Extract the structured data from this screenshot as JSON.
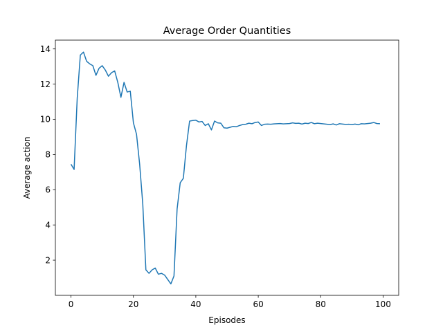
{
  "chart_data": {
    "type": "line",
    "title": "Average Order Quantities",
    "xlabel": "Episodes",
    "ylabel": "Average action",
    "xlim": [
      -5,
      105
    ],
    "ylim": [
      0.0,
      14.5
    ],
    "xticks": [
      0,
      20,
      40,
      60,
      80,
      100
    ],
    "yticks": [
      2,
      4,
      6,
      8,
      10,
      12,
      14
    ],
    "grid": false,
    "series": [
      {
        "color": "#1f77b4",
        "x": [
          0,
          1,
          2,
          3,
          4,
          5,
          6,
          7,
          8,
          9,
          10,
          11,
          12,
          13,
          14,
          15,
          16,
          17,
          18,
          19,
          20,
          21,
          22,
          23,
          24,
          25,
          26,
          27,
          28,
          29,
          30,
          31,
          32,
          33,
          34,
          35,
          36,
          37,
          38,
          39,
          40,
          41,
          42,
          43,
          44,
          45,
          46,
          47,
          48,
          49,
          50,
          51,
          52,
          53,
          54,
          55,
          56,
          57,
          58,
          59,
          60,
          61,
          62,
          63,
          64,
          65,
          66,
          67,
          68,
          69,
          70,
          71,
          72,
          73,
          74,
          75,
          76,
          77,
          78,
          79,
          80,
          81,
          82,
          83,
          84,
          85,
          86,
          87,
          88,
          89,
          90,
          91,
          92,
          93,
          94,
          95,
          96,
          97,
          98,
          99
        ],
        "y": [
          7.45,
          7.15,
          11.2,
          13.65,
          13.82,
          13.3,
          13.15,
          13.05,
          12.5,
          12.9,
          13.05,
          12.8,
          12.45,
          12.65,
          12.75,
          12.1,
          11.25,
          12.1,
          11.55,
          11.6,
          9.8,
          9.15,
          7.45,
          5.2,
          1.45,
          1.25,
          1.45,
          1.55,
          1.2,
          1.25,
          1.15,
          0.9,
          0.65,
          1.1,
          4.9,
          6.4,
          6.65,
          8.5,
          9.9,
          9.93,
          9.95,
          9.85,
          9.88,
          9.65,
          9.75,
          9.4,
          9.9,
          9.8,
          9.78,
          9.52,
          9.5,
          9.55,
          9.6,
          9.58,
          9.65,
          9.7,
          9.72,
          9.78,
          9.75,
          9.82,
          9.85,
          9.65,
          9.72,
          9.73,
          9.72,
          9.74,
          9.75,
          9.76,
          9.74,
          9.75,
          9.76,
          9.8,
          9.77,
          9.78,
          9.73,
          9.78,
          9.76,
          9.82,
          9.75,
          9.78,
          9.76,
          9.74,
          9.72,
          9.7,
          9.74,
          9.68,
          9.75,
          9.73,
          9.71,
          9.72,
          9.7,
          9.73,
          9.69,
          9.75,
          9.74,
          9.76,
          9.78,
          9.82,
          9.76,
          9.75
        ]
      }
    ]
  }
}
